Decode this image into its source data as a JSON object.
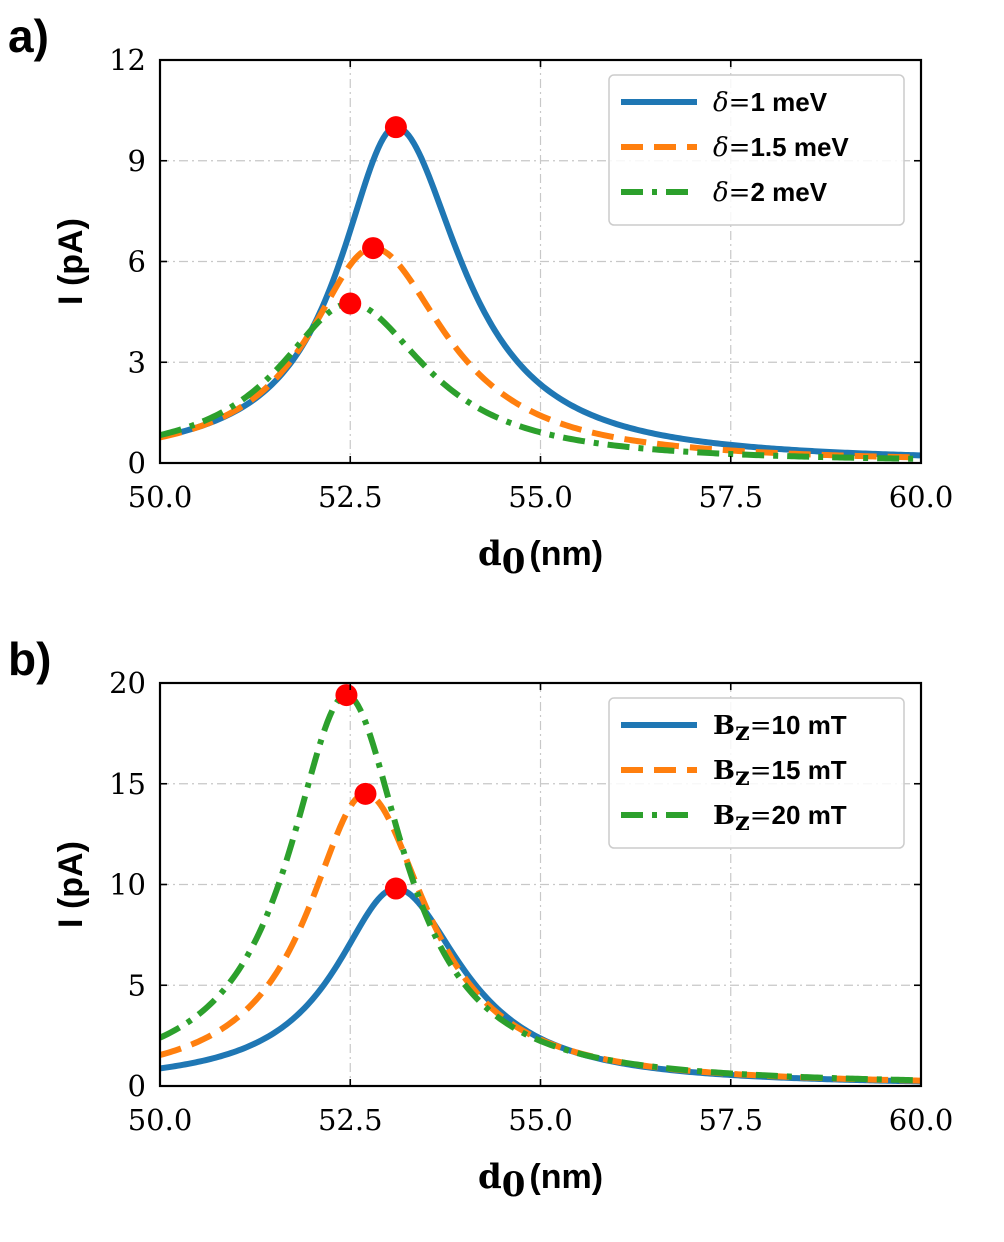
{
  "figure": {
    "panels": [
      {
        "label": "a)"
      },
      {
        "label": "b)"
      }
    ]
  },
  "chart_data": [
    {
      "type": "line",
      "panel": "a)",
      "xlabel": "d₀ (nm)",
      "xlabel_main": "d",
      "xlabel_sub": "0",
      "xlabel_unit": "(nm)",
      "ylabel": "I (pA)",
      "xlim": [
        50.0,
        60.0
      ],
      "ylim": [
        0,
        12
      ],
      "xticks": [
        50.0,
        52.5,
        55.0,
        57.5,
        60.0
      ],
      "xtick_labels": [
        "50.0",
        "52.5",
        "55.0",
        "57.5",
        "60.0"
      ],
      "yticks": [
        0,
        3,
        6,
        9,
        12
      ],
      "ytick_labels": [
        "0",
        "3",
        "6",
        "9",
        "12"
      ],
      "grid": true,
      "legend_position": "top-right",
      "series": [
        {
          "name": "δ=1 meV",
          "legend_prefix": "δ",
          "legend_value": "1 meV",
          "color": "#1f77b4",
          "style": "solid",
          "peak_x": 53.1,
          "peak_y": 10.0,
          "hwhm_left": 0.9,
          "hwhm_right": 1.05
        },
        {
          "name": "δ=1.5 meV",
          "legend_prefix": "δ",
          "legend_value": "1.5 meV",
          "color": "#ff7f0e",
          "style": "dashed",
          "peak_x": 52.8,
          "peak_y": 6.4,
          "hwhm_left": 1.03,
          "hwhm_right": 1.17
        },
        {
          "name": "δ=2 meV",
          "legend_prefix": "δ",
          "legend_value": "2 meV",
          "color": "#2ca02c",
          "style": "dashdot",
          "peak_x": 52.5,
          "peak_y": 4.75,
          "hwhm_left": 1.15,
          "hwhm_right": 1.22
        }
      ],
      "markers": [
        {
          "x": 53.1,
          "y": 10.0,
          "color": "#ff0000"
        },
        {
          "x": 52.8,
          "y": 6.4,
          "color": "#ff0000"
        },
        {
          "x": 52.5,
          "y": 4.75,
          "color": "#ff0000"
        }
      ]
    },
    {
      "type": "line",
      "panel": "b)",
      "xlabel": "d₀ (nm)",
      "xlabel_main": "d",
      "xlabel_sub": "0",
      "xlabel_unit": "(nm)",
      "ylabel": "I (pA)",
      "xlim": [
        50.0,
        60.0
      ],
      "ylim": [
        0,
        20
      ],
      "xticks": [
        50.0,
        52.5,
        55.0,
        57.5,
        60.0
      ],
      "xtick_labels": [
        "50.0",
        "52.5",
        "55.0",
        "57.5",
        "60.0"
      ],
      "yticks": [
        0,
        5,
        10,
        15,
        20
      ],
      "ytick_labels": [
        "0",
        "5",
        "10",
        "15",
        "20"
      ],
      "grid": true,
      "legend_position": "top-right",
      "series": [
        {
          "name": "Bz=10 mT",
          "legend_prefix": "B",
          "legend_sub": "z",
          "legend_value": "10 mT",
          "color": "#1f77b4",
          "style": "solid",
          "peak_x": 53.1,
          "peak_y": 9.8,
          "hwhm_left": 0.97,
          "hwhm_right": 1.07
        },
        {
          "name": "Bz=15 mT",
          "legend_prefix": "B",
          "legend_sub": "z",
          "legend_value": "15 mT",
          "color": "#ff7f0e",
          "style": "dashed",
          "peak_x": 52.7,
          "peak_y": 14.5,
          "hwhm_left": 0.93,
          "hwhm_right": 1.0
        },
        {
          "name": "Bz=20 mT",
          "legend_prefix": "B",
          "legend_sub": "z",
          "legend_value": "20 mT",
          "color": "#2ca02c",
          "style": "dashdot",
          "peak_x": 52.45,
          "peak_y": 19.4,
          "hwhm_left": 0.92,
          "hwhm_right": 0.92
        }
      ],
      "markers": [
        {
          "x": 53.1,
          "y": 9.8,
          "color": "#ff0000"
        },
        {
          "x": 52.7,
          "y": 14.5,
          "color": "#ff0000"
        },
        {
          "x": 52.45,
          "y": 19.4,
          "color": "#ff0000"
        }
      ]
    }
  ]
}
